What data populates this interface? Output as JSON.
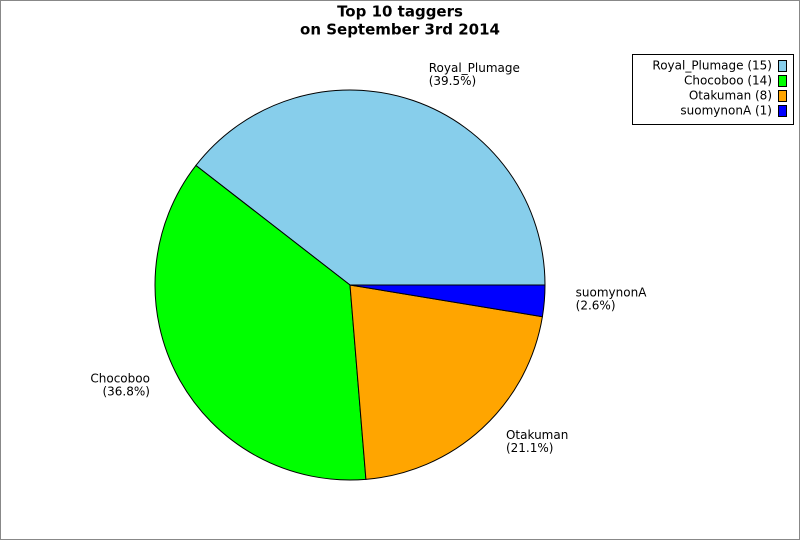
{
  "chart_data": {
    "type": "pie",
    "title": "Top 10 taggers",
    "subtitle": "on September 3rd 2014",
    "categories": [
      "Royal_Plumage",
      "Chocoboo",
      "Otakuman",
      "suomynonA"
    ],
    "values": [
      39.5,
      36.8,
      21.1,
      2.6
    ],
    "value_labels": [
      "(39.5%)",
      "(36.8%)",
      "(21.1%)",
      "(2.6%)"
    ],
    "legend_entries": [
      "Royal_Plumage (15)",
      "Chocoboo (14)",
      "Otakuman (8)",
      "suomynonA (1)"
    ],
    "colors": [
      "#87ceeb",
      "#00ff00",
      "#ffa500",
      "#0000ff"
    ],
    "legend": "top-right"
  }
}
